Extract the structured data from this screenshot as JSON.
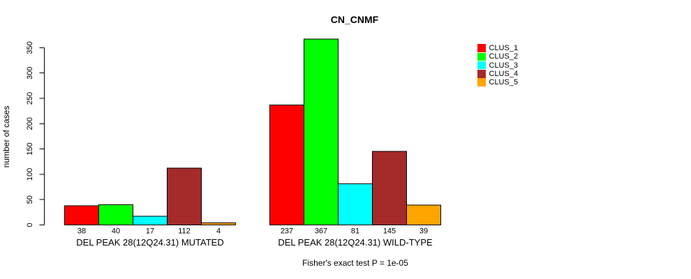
{
  "title": "CN_CNMF",
  "caption": "Fisher's exact test P = 1e-05",
  "chart_data": {
    "type": "bar",
    "title": "CN_CNMF",
    "xlabel": "",
    "ylabel": "number of cases",
    "ylim": [
      0,
      370
    ],
    "yticks": [
      0,
      50,
      100,
      150,
      200,
      250,
      300,
      350
    ],
    "grid": false,
    "legend_position": "right",
    "categories": [
      "DEL PEAK 28(12Q24.31) MUTATED",
      "DEL PEAK 28(12Q24.31) WILD-TYPE"
    ],
    "series": [
      {
        "name": "CLUS_1",
        "color": "#FF0000",
        "values": [
          38,
          237
        ]
      },
      {
        "name": "CLUS_2",
        "color": "#00FF00",
        "values": [
          40,
          367
        ]
      },
      {
        "name": "CLUS_3",
        "color": "#00FFFF",
        "values": [
          17,
          81
        ]
      },
      {
        "name": "CLUS_4",
        "color": "#A52A2A",
        "values": [
          112,
          145
        ]
      },
      {
        "name": "CLUS_5",
        "color": "#FFA500",
        "values": [
          4,
          39
        ]
      }
    ],
    "bar_value_labels_shown": true,
    "annotation": "Fisher's exact test P = 1e-05",
    "bar_border_color": "#000000"
  }
}
